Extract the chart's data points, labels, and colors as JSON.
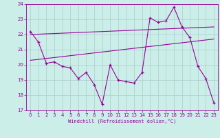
{
  "xlabel": "Windchill (Refroidissement éolien,°C)",
  "bg_color": "#cceee8",
  "line_color": "#990099",
  "grid_color": "#aacccc",
  "xlim": [
    -0.5,
    23.5
  ],
  "ylim": [
    17,
    24
  ],
  "yticks": [
    17,
    18,
    19,
    20,
    21,
    22,
    23,
    24
  ],
  "xticks": [
    0,
    1,
    2,
    3,
    4,
    5,
    6,
    7,
    8,
    9,
    10,
    11,
    12,
    13,
    14,
    15,
    16,
    17,
    18,
    19,
    20,
    21,
    22,
    23
  ],
  "line1_x": [
    0,
    1,
    2,
    3,
    4,
    5,
    6,
    7,
    8,
    9,
    10,
    11,
    12,
    13,
    14,
    15,
    16,
    17,
    18,
    19,
    20,
    21,
    22,
    23
  ],
  "line1_y": [
    22.2,
    21.5,
    20.1,
    20.2,
    19.9,
    19.8,
    19.1,
    19.5,
    18.7,
    17.4,
    20.0,
    19.0,
    18.9,
    18.8,
    19.5,
    23.1,
    22.8,
    22.9,
    23.8,
    22.5,
    21.8,
    19.9,
    19.1,
    17.5
  ],
  "line2_x": [
    0,
    23
  ],
  "line2_y": [
    22.0,
    22.5
  ],
  "line3_x": [
    0,
    23
  ],
  "line3_y": [
    20.3,
    21.7
  ]
}
